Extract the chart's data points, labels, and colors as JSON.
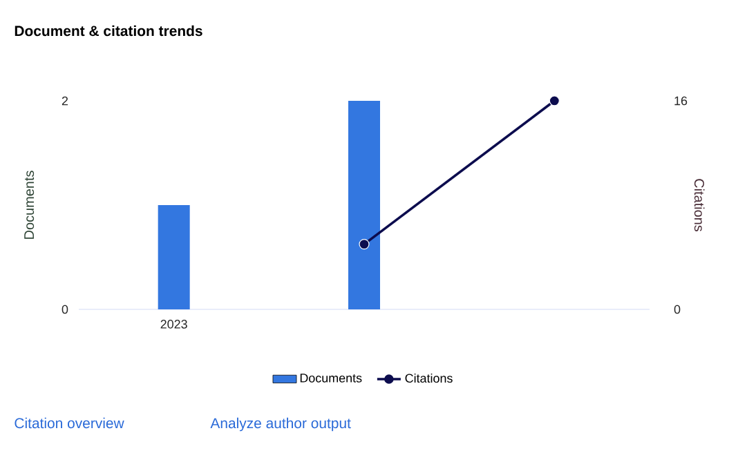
{
  "chart_data": {
    "type": "bar",
    "title": "Document & citation trends",
    "categories": [
      "2023",
      null,
      null
    ],
    "series": [
      {
        "name": "Documents",
        "color": "#3377e0",
        "values": [
          1,
          2,
          null
        ]
      },
      {
        "name": "Citations",
        "type": "line",
        "axis": "y2",
        "color": "#0c0c4e",
        "marker": "circle",
        "values": [
          null,
          5,
          16
        ]
      }
    ],
    "ylabel": "Documents",
    "y2label": "Citations",
    "ylim": [
      0,
      2
    ],
    "yticks": [
      0,
      2
    ],
    "y2lim": [
      0,
      16
    ],
    "y2ticks": [
      0,
      16
    ],
    "legend": "bottom",
    "annotations": [
      "Citation overview",
      "Analyze author output"
    ]
  }
}
